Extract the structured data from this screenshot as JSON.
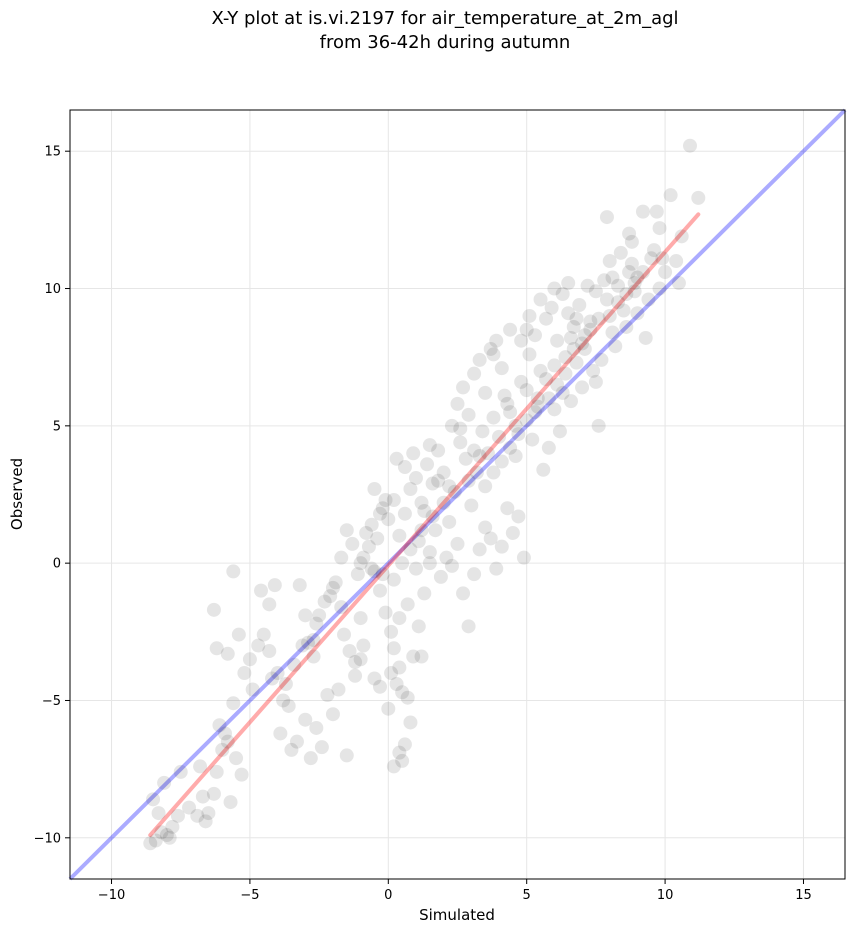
{
  "chart_data": {
    "type": "scatter",
    "title_lines": [
      "X-Y plot at is.vi.2197 for air_temperature_at_2m_agl",
      "from 36-42h during autumn"
    ],
    "xlabel": "Simulated",
    "ylabel": "Observed",
    "xlim": [
      -11.5,
      16.5
    ],
    "ylim": [
      -11.5,
      16.5
    ],
    "xticks": [
      -10,
      -5,
      0,
      5,
      10,
      15
    ],
    "yticks": [
      -10,
      -5,
      0,
      5,
      10,
      15
    ],
    "xtick_labels": [
      "−10",
      "−5",
      "0",
      "5",
      "10",
      "15"
    ],
    "ytick_labels": [
      "−10",
      "−5",
      "0",
      "5",
      "10",
      "15"
    ],
    "grid": true,
    "point_color": "#000000",
    "point_alpha": 0.1,
    "identity_line": {
      "x": [
        -11.5,
        16.5
      ],
      "y": [
        -11.5,
        16.5
      ],
      "color": "#0000ff"
    },
    "fit_line": {
      "x": [
        -8.6,
        11.2
      ],
      "y": [
        -9.9,
        12.7
      ],
      "color": "#ff0000"
    },
    "points": [
      [
        -8.6,
        -10.2
      ],
      [
        -8.4,
        -10.1
      ],
      [
        -8.2,
        -9.8
      ],
      [
        -8.0,
        -9.9
      ],
      [
        -7.8,
        -9.6
      ],
      [
        -7.6,
        -9.2
      ],
      [
        -7.9,
        -10.0
      ],
      [
        -8.3,
        -9.1
      ],
      [
        -8.5,
        -8.6
      ],
      [
        -8.1,
        -8.0
      ],
      [
        -7.5,
        -7.6
      ],
      [
        -7.2,
        -8.9
      ],
      [
        -6.9,
        -9.2
      ],
      [
        -6.6,
        -9.4
      ],
      [
        -6.5,
        -9.1
      ],
      [
        -6.7,
        -8.5
      ],
      [
        -6.3,
        -8.4
      ],
      [
        -6.8,
        -7.4
      ],
      [
        -6.2,
        -7.6
      ],
      [
        -6.0,
        -6.8
      ],
      [
        -5.8,
        -6.5
      ],
      [
        -5.7,
        -8.7
      ],
      [
        -5.5,
        -7.1
      ],
      [
        -5.3,
        -7.7
      ],
      [
        -6.1,
        -5.9
      ],
      [
        -5.9,
        -6.2
      ],
      [
        -5.6,
        -5.1
      ],
      [
        -5.2,
        -4.0
      ],
      [
        -5.0,
        -3.5
      ],
      [
        -4.9,
        -4.6
      ],
      [
        -4.7,
        -3.0
      ],
      [
        -4.5,
        -2.6
      ],
      [
        -4.3,
        -1.5
      ],
      [
        -4.1,
        -0.8
      ],
      [
        -4.0,
        -4.0
      ],
      [
        -3.8,
        -5.0
      ],
      [
        -3.6,
        -5.2
      ],
      [
        -3.9,
        -6.2
      ],
      [
        -3.5,
        -6.8
      ],
      [
        -3.3,
        -6.5
      ],
      [
        -3.0,
        -5.7
      ],
      [
        -2.8,
        -7.1
      ],
      [
        -2.6,
        -6.0
      ],
      [
        -2.4,
        -6.7
      ],
      [
        -2.2,
        -4.8
      ],
      [
        -2.0,
        -5.5
      ],
      [
        -2.7,
        -3.4
      ],
      [
        -2.9,
        -2.9
      ],
      [
        -2.5,
        -1.9
      ],
      [
        -2.1,
        -1.2
      ],
      [
        -1.9,
        -0.7
      ],
      [
        -1.7,
        -1.6
      ],
      [
        -1.6,
        -2.6
      ],
      [
        -1.4,
        -3.2
      ],
      [
        -1.2,
        -3.6
      ],
      [
        -1.8,
        -4.6
      ],
      [
        -1.5,
        -7.0
      ],
      [
        -1.1,
        -0.4
      ],
      [
        -0.9,
        0.2
      ],
      [
        -0.7,
        0.6
      ],
      [
        -0.5,
        -0.3
      ],
      [
        -0.3,
        -1.0
      ],
      [
        -0.1,
        -1.8
      ],
      [
        0.1,
        -2.5
      ],
      [
        0.2,
        -3.1
      ],
      [
        0.4,
        -3.8
      ],
      [
        0.3,
        -4.4
      ],
      [
        0.0,
        -5.3
      ],
      [
        0.5,
        -4.7
      ],
      [
        0.7,
        -4.9
      ],
      [
        0.6,
        -6.6
      ],
      [
        0.4,
        -6.9
      ],
      [
        0.2,
        -7.4
      ],
      [
        0.5,
        -7.2
      ],
      [
        0.8,
        -5.8
      ],
      [
        0.9,
        -3.4
      ],
      [
        1.1,
        -2.3
      ],
      [
        1.3,
        -1.1
      ],
      [
        1.0,
        -0.2
      ],
      [
        -6.3,
        -1.7
      ],
      [
        -6.2,
        -3.1
      ],
      [
        -5.8,
        -3.3
      ],
      [
        -5.4,
        -2.6
      ],
      [
        -5.6,
        -0.3
      ],
      [
        -4.6,
        -1.0
      ],
      [
        -3.2,
        -0.8
      ],
      [
        -3.0,
        -1.9
      ],
      [
        -2.7,
        -2.8
      ],
      [
        -4.3,
        -3.2
      ],
      [
        -4.2,
        -4.2
      ],
      [
        -0.8,
        1.1
      ],
      [
        -0.6,
        1.4
      ],
      [
        -0.4,
        0.9
      ],
      [
        -0.2,
        2.0
      ],
      [
        0.0,
        1.6
      ],
      [
        0.2,
        2.3
      ],
      [
        0.4,
        1.0
      ],
      [
        0.6,
        1.8
      ],
      [
        0.8,
        2.7
      ],
      [
        1.0,
        3.1
      ],
      [
        1.2,
        2.2
      ],
      [
        1.4,
        3.6
      ],
      [
        1.6,
        2.9
      ],
      [
        1.8,
        4.1
      ],
      [
        2.0,
        3.3
      ],
      [
        2.2,
        1.5
      ],
      [
        2.4,
        2.6
      ],
      [
        2.6,
        4.4
      ],
      [
        2.8,
        3.8
      ],
      [
        3.0,
        2.1
      ],
      [
        1.1,
        0.8
      ],
      [
        1.3,
        1.9
      ],
      [
        1.5,
        0.4
      ],
      [
        1.7,
        1.2
      ],
      [
        1.9,
        -0.5
      ],
      [
        2.1,
        0.2
      ],
      [
        2.3,
        -0.1
      ],
      [
        2.5,
        0.7
      ],
      [
        2.7,
        -1.1
      ],
      [
        2.9,
        -2.3
      ],
      [
        3.1,
        -0.4
      ],
      [
        3.3,
        0.5
      ],
      [
        3.5,
        1.3
      ],
      [
        3.7,
        0.9
      ],
      [
        3.9,
        -0.2
      ],
      [
        4.1,
        0.6
      ],
      [
        4.3,
        2.0
      ],
      [
        4.5,
        1.1
      ],
      [
        4.7,
        1.7
      ],
      [
        4.9,
        0.2
      ],
      [
        3.2,
        3.3
      ],
      [
        3.4,
        4.8
      ],
      [
        3.6,
        4.0
      ],
      [
        3.8,
        5.3
      ],
      [
        4.0,
        4.6
      ],
      [
        4.2,
        6.1
      ],
      [
        4.4,
        5.5
      ],
      [
        4.6,
        3.9
      ],
      [
        4.8,
        6.6
      ],
      [
        5.0,
        5.2
      ],
      [
        2.3,
        5.0
      ],
      [
        2.5,
        5.8
      ],
      [
        2.7,
        6.4
      ],
      [
        2.9,
        5.4
      ],
      [
        3.1,
        6.9
      ],
      [
        3.3,
        7.4
      ],
      [
        3.5,
        6.2
      ],
      [
        3.7,
        7.8
      ],
      [
        3.9,
        8.1
      ],
      [
        4.1,
        7.1
      ],
      [
        5.2,
        4.5
      ],
      [
        5.4,
        6.0
      ],
      [
        5.6,
        3.4
      ],
      [
        5.8,
        4.2
      ],
      [
        6.0,
        5.6
      ],
      [
        6.2,
        4.8
      ],
      [
        6.4,
        6.9
      ],
      [
        6.6,
        5.9
      ],
      [
        6.8,
        7.3
      ],
      [
        7.0,
        6.4
      ],
      [
        5.1,
        7.6
      ],
      [
        5.3,
        8.3
      ],
      [
        5.5,
        7.0
      ],
      [
        5.7,
        8.9
      ],
      [
        5.9,
        9.3
      ],
      [
        6.1,
        8.1
      ],
      [
        6.3,
        9.8
      ],
      [
        6.5,
        10.2
      ],
      [
        6.7,
        8.6
      ],
      [
        6.9,
        9.4
      ],
      [
        7.1,
        7.8
      ],
      [
        7.3,
        8.8
      ],
      [
        7.5,
        6.6
      ],
      [
        7.7,
        7.4
      ],
      [
        7.9,
        9.6
      ],
      [
        8.1,
        8.4
      ],
      [
        8.3,
        10.1
      ],
      [
        8.5,
        9.2
      ],
      [
        8.7,
        10.6
      ],
      [
        8.9,
        9.9
      ],
      [
        7.6,
        5.0
      ],
      [
        7.8,
        10.3
      ],
      [
        8.0,
        11.0
      ],
      [
        8.2,
        7.9
      ],
      [
        8.4,
        11.3
      ],
      [
        8.6,
        8.6
      ],
      [
        8.8,
        11.7
      ],
      [
        9.0,
        10.4
      ],
      [
        9.2,
        12.8
      ],
      [
        9.4,
        9.6
      ],
      [
        9.6,
        11.4
      ],
      [
        9.8,
        12.2
      ],
      [
        10.0,
        10.6
      ],
      [
        10.2,
        13.4
      ],
      [
        10.4,
        11.0
      ],
      [
        10.6,
        11.9
      ],
      [
        10.9,
        15.2
      ],
      [
        11.2,
        13.3
      ],
      [
        9.0,
        9.1
      ],
      [
        9.3,
        8.2
      ],
      [
        7.9,
        12.6
      ],
      [
        9.7,
        12.8
      ],
      [
        10.5,
        10.2
      ],
      [
        8.7,
        12.0
      ],
      [
        9.9,
        11.1
      ],
      [
        7.2,
        10.1
      ],
      [
        6.6,
        8.2
      ],
      [
        5.0,
        8.5
      ],
      [
        4.4,
        8.5
      ],
      [
        3.8,
        7.6
      ],
      [
        1.5,
        4.3
      ],
      [
        0.9,
        4.0
      ],
      [
        0.6,
        3.5
      ],
      [
        0.3,
        3.8
      ],
      [
        -0.1,
        2.3
      ],
      [
        -0.3,
        1.8
      ],
      [
        -0.5,
        2.7
      ],
      [
        1.8,
        3.0
      ],
      [
        2.6,
        4.9
      ],
      [
        3.1,
        4.1
      ],
      [
        4.3,
        5.8
      ],
      [
        4.6,
        5.0
      ],
      [
        5.0,
        6.3
      ],
      [
        5.3,
        5.5
      ],
      [
        5.7,
        6.7
      ],
      [
        6.0,
        7.2
      ],
      [
        6.3,
        6.2
      ],
      [
        6.7,
        7.8
      ],
      [
        7.1,
        8.3
      ],
      [
        7.4,
        7.0
      ],
      [
        2.0,
        2.2
      ],
      [
        2.2,
        2.8
      ],
      [
        1.6,
        1.7
      ],
      [
        1.2,
        1.2
      ],
      [
        0.8,
        0.5
      ],
      [
        0.5,
        0.0
      ],
      [
        0.2,
        -0.6
      ],
      [
        -0.2,
        -0.4
      ],
      [
        -0.6,
        -0.2
      ],
      [
        -1.0,
        0.0
      ],
      [
        3.5,
        2.8
      ],
      [
        3.8,
        3.3
      ],
      [
        4.1,
        3.7
      ],
      [
        4.4,
        4.2
      ],
      [
        4.7,
        4.7
      ],
      [
        2.9,
        3.0
      ],
      [
        3.3,
        3.9
      ],
      [
        5.4,
        5.7
      ],
      [
        5.8,
        6.0
      ],
      [
        6.1,
        6.5
      ],
      [
        -1.3,
        0.7
      ],
      [
        -1.5,
        1.2
      ],
      [
        -1.7,
        0.2
      ],
      [
        -2.0,
        -0.9
      ],
      [
        -2.3,
        -1.4
      ],
      [
        -2.6,
        -2.2
      ],
      [
        -3.1,
        -3.0
      ],
      [
        -3.4,
        -3.7
      ],
      [
        -3.7,
        -4.4
      ],
      [
        -1.0,
        -2.0
      ],
      [
        -0.9,
        -3.0
      ],
      [
        -0.5,
        -4.2
      ],
      [
        -0.3,
        -4.5
      ],
      [
        0.1,
        -4.0
      ],
      [
        -1.2,
        -4.1
      ],
      [
        -1.0,
        -3.5
      ],
      [
        1.2,
        -3.4
      ],
      [
        1.5,
        0.0
      ],
      [
        0.7,
        -1.5
      ],
      [
        0.4,
        -2.0
      ],
      [
        8.0,
        9.0
      ],
      [
        8.3,
        9.5
      ],
      [
        8.6,
        9.8
      ],
      [
        8.9,
        10.2
      ],
      [
        9.2,
        10.6
      ],
      [
        7.6,
        8.9
      ],
      [
        7.3,
        8.5
      ],
      [
        7.0,
        8.0
      ],
      [
        6.8,
        8.9
      ],
      [
        6.4,
        7.5
      ],
      [
        4.8,
        8.1
      ],
      [
        5.1,
        9.0
      ],
      [
        5.5,
        9.6
      ],
      [
        6.0,
        10.0
      ],
      [
        6.5,
        9.1
      ],
      [
        7.5,
        9.9
      ],
      [
        8.1,
        10.4
      ],
      [
        8.8,
        10.9
      ],
      [
        9.5,
        11.1
      ],
      [
        9.8,
        10.0
      ]
    ]
  }
}
